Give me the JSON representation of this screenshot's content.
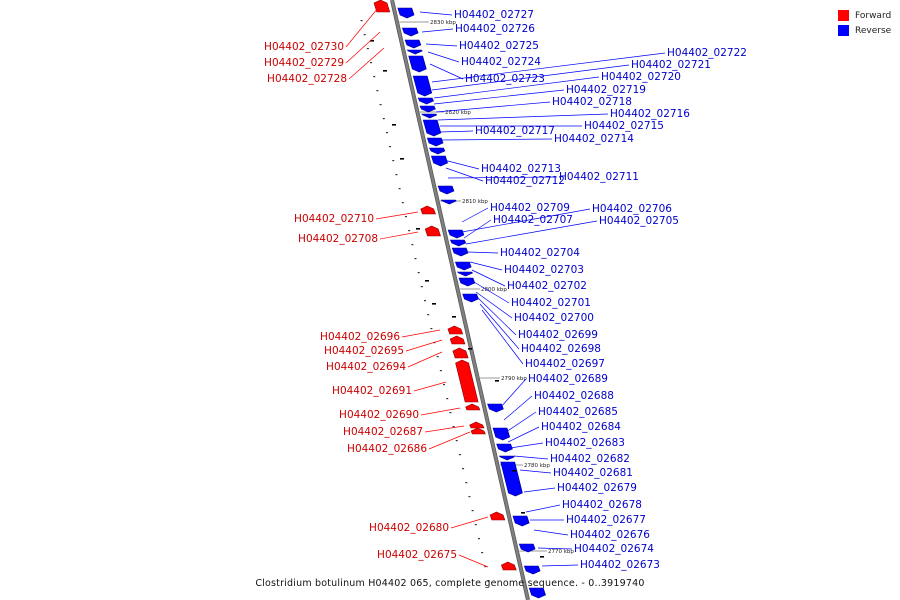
{
  "legend": {
    "items": [
      {
        "label": "Forward",
        "color": "#ff0000"
      },
      {
        "label": "Reverse",
        "color": "#0000ff"
      }
    ]
  },
  "caption": "Clostridium botulinum H04402 065, complete genome sequence. - 0..3919740",
  "colors": {
    "forward": "#ff0000",
    "reverse": "#0000ff",
    "backbone": "#808080"
  },
  "scale_ticks": [
    "2830 kbp",
    "2820 kbp",
    "2810 kbp",
    "2800 kbp",
    "2790 kbp",
    "2780 kbp",
    "2770 kbp"
  ],
  "genes_forward": [
    "H04402_02730",
    "H04402_02729",
    "H04402_02728",
    "H04402_02710",
    "H04402_02708",
    "H04402_02696",
    "H04402_02695",
    "H04402_02694",
    "H04402_02691",
    "H04402_02690",
    "H04402_02687",
    "H04402_02686",
    "H04402_02680",
    "H04402_02675"
  ],
  "genes_reverse": [
    "H04402_02727",
    "H04402_02726",
    "H04402_02725",
    "H04402_02724",
    "H04402_02723",
    "H04402_02722",
    "H04402_02721",
    "H04402_02720",
    "H04402_02719",
    "H04402_02718",
    "H04402_02716",
    "H04402_02715",
    "H04402_02717",
    "H04402_02714",
    "H04402_02713",
    "H04402_02712",
    "H04402_02711",
    "H04402_02709",
    "H04402_02706",
    "H04402_02707",
    "H04402_02705",
    "H04402_02704",
    "H04402_02703",
    "H04402_02702",
    "H04402_02701",
    "H04402_02700",
    "H04402_02699",
    "H04402_02698",
    "H04402_02697",
    "H04402_02689",
    "H04402_02688",
    "H04402_02685",
    "H04402_02684",
    "H04402_02683",
    "H04402_02682",
    "H04402_02681",
    "H04402_02679",
    "H04402_02678",
    "H04402_02677",
    "H04402_02676",
    "H04402_02674",
    "H04402_02673"
  ]
}
